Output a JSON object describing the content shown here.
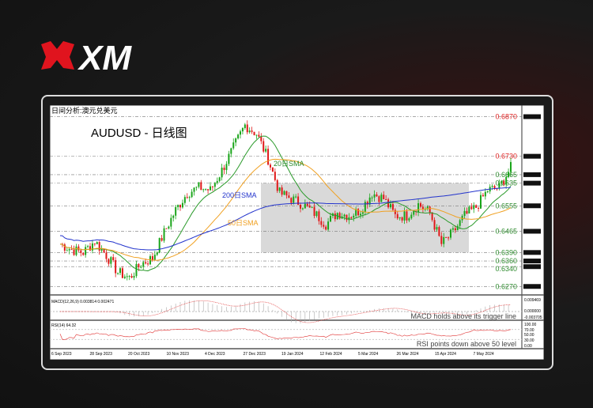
{
  "brand": {
    "name": "XM"
  },
  "chart_data": {
    "type": "candlestick",
    "header": "日间分析:澳元兑美元",
    "title": "AUDUSD - 日线图",
    "x_ticks": [
      "6 Sep 2023",
      "28 Sep 2023",
      "20 Oct 2023",
      "10 Nov 2023",
      "4 Dec 2023",
      "27 Dec 2023",
      "19 Jan 2024",
      "12 Feb 2024",
      "5 Mar 2024",
      "26 Mar 2024",
      "15 Apr 2024",
      "7 May 2024"
    ],
    "weekly_closes": [
      0.642,
      0.64,
      0.639,
      0.643,
      0.638,
      0.632,
      0.63,
      0.635,
      0.637,
      0.646,
      0.654,
      0.66,
      0.662,
      0.661,
      0.668,
      0.676,
      0.684,
      0.681,
      0.672,
      0.66,
      0.658,
      0.656,
      0.653,
      0.649,
      0.653,
      0.652,
      0.654,
      0.66,
      0.658,
      0.652,
      0.652,
      0.656,
      0.653,
      0.642,
      0.646,
      0.652,
      0.655,
      0.661,
      0.662,
      0.669
    ],
    "ylim": [
      0.624,
      0.6905
    ],
    "levels": [
      {
        "value": "0.6870",
        "color": "#e02020"
      },
      {
        "value": "0.6730",
        "color": "#e02020"
      },
      {
        "value": "0.6665",
        "color": "#2e8b2e"
      },
      {
        "value": "0.6635",
        "color": "#2e8b2e"
      },
      {
        "value": "0.6555",
        "color": "#2e8b2e"
      },
      {
        "value": "0.6465",
        "color": "#2e8b2e"
      },
      {
        "value": "0.6390",
        "color": "#2e8b2e"
      },
      {
        "value": "0.6360",
        "color": "#2e8b2e"
      },
      {
        "value": "0.6340",
        "color": "#2e8b2e"
      },
      {
        "value": "0.6270",
        "color": "#2e8b2e"
      }
    ],
    "range_box": [
      0.639,
      0.6635
    ],
    "series_labels": {
      "sma20": "20日SMA",
      "sma50": "50日SMA",
      "sma200": "200日SMA"
    },
    "colors": {
      "up": "#1aa51a",
      "down": "#e01818",
      "sma20": "#2a9a2a",
      "sma50": "#f0a020",
      "sma200": "#2233cc"
    },
    "macd": {
      "label": "MACD(12,26,9) 0.003814 0.002471",
      "note": "MACD holds above its trigger line",
      "ticks": [
        "0.009469",
        "0.000000",
        "-0.003705"
      ]
    },
    "rsi": {
      "label": "RSI(14) 64.32",
      "note": "RSI points down above 50 level",
      "ticks": [
        "100.00",
        "70.00",
        "50.00",
        "30.00",
        "0.00"
      ]
    }
  }
}
